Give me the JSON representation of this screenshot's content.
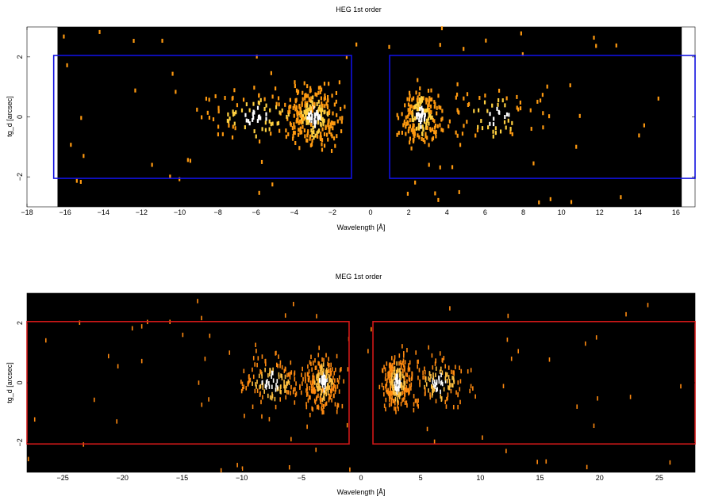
{
  "chart_data": [
    {
      "type": "heatmap",
      "title": "HEG 1st order",
      "xlabel": "Wavelength [Å]",
      "ylabel": "tg_d [arcsec]",
      "xlim": [
        -18,
        17
      ],
      "ylim": [
        -3,
        3
      ],
      "x_ticks": [
        "−18",
        "−16",
        "−14",
        "−12",
        "−10",
        "−8",
        "−6",
        "−4",
        "−2",
        "0",
        "2",
        "4",
        "6",
        "8",
        "10",
        "12",
        "14",
        "16"
      ],
      "x_tick_values": [
        -18,
        -16,
        -14,
        -12,
        -10,
        -8,
        -6,
        -4,
        -2,
        0,
        2,
        4,
        6,
        8,
        10,
        12,
        14,
        16
      ],
      "y_ticks": [
        "−2",
        "0",
        "2"
      ],
      "y_tick_values": [
        -2,
        0,
        2
      ],
      "data_extent": [
        -16.4,
        16.3
      ],
      "regions": [
        {
          "x0": -16.6,
          "x1": -1.0,
          "y0": -2.05,
          "y1": 2.05
        },
        {
          "x0": 1.0,
          "x1": 17.0,
          "y0": -2.05,
          "y1": 2.05
        }
      ],
      "region_color": "#1010e0",
      "event_clusters": [
        {
          "center": -3.0,
          "width": 1.4,
          "count": 260
        },
        {
          "center": -6.0,
          "width": 3.2,
          "count": 110
        },
        {
          "center": 2.6,
          "width": 1.0,
          "count": 200
        },
        {
          "center": 6.5,
          "width": 3.0,
          "count": 70
        }
      ],
      "background_events": 70,
      "colors": {
        "low": "#ff9a10",
        "mid": "#ffd040",
        "high": "#ffffff"
      }
    },
    {
      "type": "heatmap",
      "title": "MEG 1st order",
      "xlabel": "Wavelength [Å]",
      "ylabel": "tg_d [arcsec]",
      "xlim": [
        -28,
        28
      ],
      "ylim": [
        -3,
        3
      ],
      "x_ticks": [
        "−25",
        "−20",
        "−15",
        "−10",
        "−5",
        "0",
        "5",
        "10",
        "15",
        "20",
        "25"
      ],
      "x_tick_values": [
        -25,
        -20,
        -15,
        -10,
        -5,
        0,
        5,
        10,
        15,
        20,
        25
      ],
      "y_ticks": [
        "−2",
        "0",
        "2"
      ],
      "y_tick_values": [
        -2,
        0,
        2
      ],
      "data_extent": [
        -28,
        28
      ],
      "regions": [
        {
          "x0": -28,
          "x1": -1.0,
          "y0": -2.05,
          "y1": 2.05
        },
        {
          "x0": 1.0,
          "x1": 28,
          "y0": -2.05,
          "y1": 2.05
        }
      ],
      "region_color": "#d01818",
      "event_clusters": [
        {
          "center": -3.2,
          "width": 1.4,
          "count": 240
        },
        {
          "center": -7.5,
          "width": 3.0,
          "count": 150
        },
        {
          "center": 3.0,
          "width": 1.2,
          "count": 230
        },
        {
          "center": 6.5,
          "width": 2.6,
          "count": 140
        }
      ],
      "background_events": 70,
      "colors": {
        "low": "#ff8a10",
        "mid": "#ffc040",
        "high": "#ffffff"
      }
    }
  ]
}
